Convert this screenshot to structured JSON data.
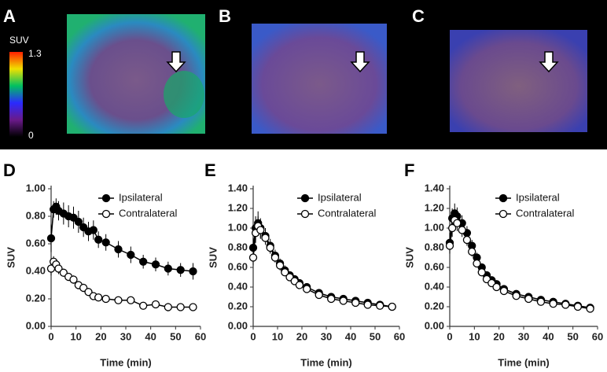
{
  "images": {
    "panels": [
      "A",
      "B",
      "C"
    ],
    "colorbar": {
      "label": "SUV",
      "max": "1.3",
      "min": "0"
    }
  },
  "chart_data": [
    {
      "type": "line",
      "panel": "D",
      "x_label": "Time (min)",
      "y_label": "SUV",
      "x": [
        0,
        1,
        2,
        3,
        5,
        7,
        9,
        11,
        13,
        15,
        17,
        19,
        22,
        27,
        32,
        37,
        42,
        47,
        52,
        57
      ],
      "xlim": [
        0,
        60
      ],
      "xticks": [
        0,
        10,
        20,
        30,
        40,
        50,
        60
      ],
      "ylim": [
        0,
        1.0
      ],
      "yticks": [
        {
          "value": 0,
          "label": "0.00"
        },
        {
          "value": 0.2,
          "label": "0.20"
        },
        {
          "value": 0.4,
          "label": "0.40"
        },
        {
          "value": 0.6,
          "label": "0.60"
        },
        {
          "value": 0.8,
          "label": "0.80"
        },
        {
          "value": 1.0,
          "label": "1.00"
        }
      ],
      "series": [
        {
          "name": "Ipsilateral",
          "color": "#000000",
          "values": [
            0.64,
            0.85,
            0.87,
            0.84,
            0.82,
            0.8,
            0.79,
            0.76,
            0.72,
            0.69,
            0.7,
            0.63,
            0.61,
            0.56,
            0.52,
            0.47,
            0.45,
            0.42,
            0.41,
            0.4
          ],
          "errors": [
            0.1,
            0.06,
            0.06,
            0.07,
            0.08,
            0.08,
            0.08,
            0.08,
            0.07,
            0.07,
            0.07,
            0.06,
            0.06,
            0.06,
            0.06,
            0.05,
            0.05,
            0.05,
            0.05,
            0.06
          ]
        },
        {
          "name": "Contralateral",
          "color": "#ffffff",
          "values": [
            0.42,
            0.47,
            0.45,
            0.42,
            0.39,
            0.36,
            0.34,
            0.3,
            0.28,
            0.25,
            0.22,
            0.21,
            0.2,
            0.19,
            0.19,
            0.15,
            0.16,
            0.14,
            0.14,
            0.14
          ],
          "errors": [
            0.05,
            0.04,
            0.04,
            0.04,
            0.03,
            0.03,
            0.03,
            0.03,
            0.03,
            0.03,
            0.02,
            0.02,
            0.02,
            0.02,
            0.02,
            0.02,
            0.02,
            0.03,
            0.02,
            0.02
          ]
        }
      ]
    },
    {
      "type": "line",
      "panel": "E",
      "x_label": "Time (min)",
      "y_label": "SUV",
      "x": [
        0,
        1,
        2,
        3,
        5,
        7,
        9,
        11,
        13,
        15,
        17,
        19,
        22,
        27,
        32,
        37,
        42,
        47,
        52,
        57
      ],
      "xlim": [
        0,
        60
      ],
      "xticks": [
        0,
        10,
        20,
        30,
        40,
        50,
        60
      ],
      "ylim": [
        0,
        1.4
      ],
      "yticks": [
        {
          "value": 0,
          "label": "0.00"
        },
        {
          "value": 0.2,
          "label": "0.20"
        },
        {
          "value": 0.4,
          "label": "0.40"
        },
        {
          "value": 0.6,
          "label": "0.60"
        },
        {
          "value": 0.8,
          "label": "0.80"
        },
        {
          "value": 1.0,
          "label": "1.00"
        },
        {
          "value": 1.2,
          "label": "1.20"
        },
        {
          "value": 1.4,
          "label": "1.40"
        }
      ],
      "series": [
        {
          "name": "Ipsilateral",
          "color": "#000000",
          "values": [
            0.8,
            1.0,
            1.05,
            1.0,
            0.92,
            0.82,
            0.72,
            0.64,
            0.57,
            0.52,
            0.48,
            0.44,
            0.4,
            0.34,
            0.3,
            0.28,
            0.26,
            0.24,
            0.22,
            0.2
          ],
          "errors": [
            0.1,
            0.12,
            0.12,
            0.1,
            0.08,
            0.07,
            0.06,
            0.05,
            0.05,
            0.04,
            0.04,
            0.03,
            0.03,
            0.03,
            0.02,
            0.02,
            0.02,
            0.02,
            0.02,
            0.02
          ]
        },
        {
          "name": "Contralateral",
          "color": "#ffffff",
          "values": [
            0.7,
            0.95,
            1.02,
            0.98,
            0.9,
            0.8,
            0.7,
            0.62,
            0.55,
            0.5,
            0.46,
            0.42,
            0.38,
            0.32,
            0.28,
            0.26,
            0.24,
            0.22,
            0.21,
            0.2
          ],
          "errors": [
            0.08,
            0.1,
            0.1,
            0.09,
            0.07,
            0.06,
            0.05,
            0.05,
            0.04,
            0.04,
            0.03,
            0.03,
            0.03,
            0.02,
            0.02,
            0.02,
            0.02,
            0.02,
            0.02,
            0.02
          ]
        }
      ]
    },
    {
      "type": "line",
      "panel": "F",
      "x_label": "Time (min)",
      "y_label": "SUV",
      "x": [
        0,
        1,
        2,
        3,
        5,
        7,
        9,
        11,
        13,
        15,
        17,
        19,
        22,
        27,
        32,
        37,
        42,
        47,
        52,
        57
      ],
      "xlim": [
        0,
        60
      ],
      "xticks": [
        0,
        10,
        20,
        30,
        40,
        50,
        60
      ],
      "ylim": [
        0,
        1.4
      ],
      "yticks": [
        {
          "value": 0,
          "label": "0.00"
        },
        {
          "value": 0.2,
          "label": "0.20"
        },
        {
          "value": 0.4,
          "label": "0.40"
        },
        {
          "value": 0.6,
          "label": "0.60"
        },
        {
          "value": 0.8,
          "label": "0.80"
        },
        {
          "value": 1.0,
          "label": "1.00"
        },
        {
          "value": 1.2,
          "label": "1.20"
        },
        {
          "value": 1.4,
          "label": "1.40"
        }
      ],
      "series": [
        {
          "name": "Ipsilateral",
          "color": "#000000",
          "values": [
            0.85,
            1.1,
            1.15,
            1.12,
            1.05,
            0.95,
            0.82,
            0.7,
            0.6,
            0.52,
            0.47,
            0.43,
            0.38,
            0.33,
            0.3,
            0.27,
            0.25,
            0.23,
            0.21,
            0.19
          ],
          "errors": [
            0.1,
            0.1,
            0.1,
            0.09,
            0.08,
            0.07,
            0.06,
            0.05,
            0.04,
            0.04,
            0.03,
            0.03,
            0.03,
            0.02,
            0.02,
            0.02,
            0.02,
            0.02,
            0.02,
            0.02
          ]
        },
        {
          "name": "Contralateral",
          "color": "#ffffff",
          "values": [
            0.82,
            1.0,
            1.08,
            1.05,
            0.98,
            0.88,
            0.76,
            0.64,
            0.55,
            0.48,
            0.44,
            0.4,
            0.36,
            0.31,
            0.28,
            0.25,
            0.23,
            0.22,
            0.2,
            0.18
          ],
          "errors": [
            0.08,
            0.09,
            0.09,
            0.08,
            0.07,
            0.06,
            0.05,
            0.04,
            0.04,
            0.03,
            0.03,
            0.03,
            0.02,
            0.02,
            0.02,
            0.02,
            0.02,
            0.02,
            0.02,
            0.02
          ]
        }
      ]
    }
  ]
}
